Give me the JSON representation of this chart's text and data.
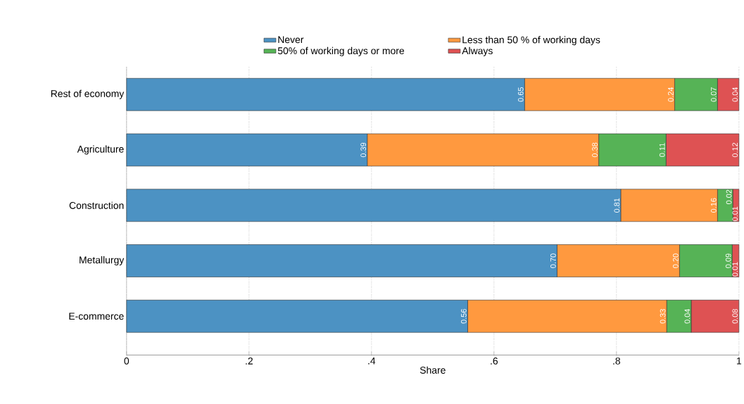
{
  "chart_data": {
    "type": "bar",
    "orientation": "horizontal",
    "stacked": true,
    "xlabel": "Share",
    "categories": [
      "Rest of economy",
      "Agriculture",
      "Construction",
      "Metallurgy",
      "E-commerce"
    ],
    "series": [
      {
        "name": "Never",
        "color": "#4c92c3",
        "values": [
          0.65,
          0.393,
          0.807,
          0.703,
          0.557
        ],
        "value_labels": [
          "0.65",
          "0.39",
          "0.81",
          "0.70",
          "0.56"
        ]
      },
      {
        "name": "Less than 50 % of working days",
        "color": "#ff993f",
        "values": [
          0.245,
          0.378,
          0.158,
          0.2,
          0.325
        ],
        "value_labels": [
          "0.24",
          "0.38",
          "0.16",
          "0.20",
          "0.33"
        ]
      },
      {
        "name": "50% of working days or more",
        "color": "#56b356",
        "values": [
          0.07,
          0.11,
          0.025,
          0.086,
          0.04
        ],
        "value_labels": [
          "0.07",
          "0.11",
          "0.02",
          "0.09",
          "0.04"
        ]
      },
      {
        "name": "Always",
        "color": "#de5253",
        "values": [
          0.035,
          0.119,
          0.01,
          0.011,
          0.078
        ],
        "value_labels": [
          "0.04",
          "0.12",
          "0.01",
          "0.01",
          "0.08"
        ]
      }
    ],
    "xlim": [
      0,
      1
    ],
    "xticks": [
      0,
      {
        "value": 0.2,
        "label": ".2"
      },
      {
        "value": 0.4,
        "label": ".4"
      },
      {
        "value": 0.6,
        "label": ".6"
      },
      {
        "value": 0.8,
        "label": ".8"
      },
      1
    ],
    "grid": "x",
    "legend": "top"
  }
}
